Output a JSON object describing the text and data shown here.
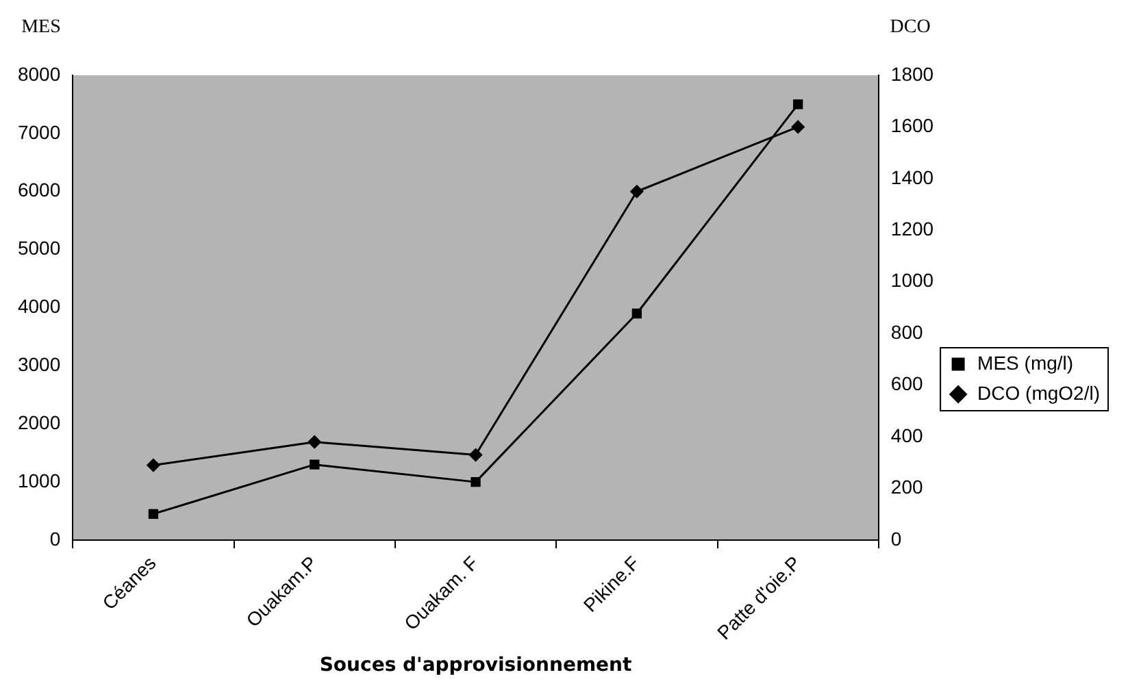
{
  "chart_data": {
    "type": "line",
    "categories": [
      "Céanes",
      "Ouakam.P",
      "Ouakam. F",
      "Pikine.F",
      "Patte d'oie.P"
    ],
    "xlabel": "Souces d'approvisionnement",
    "ylabel": "MES",
    "y2label": "DCO",
    "series": [
      {
        "name": "MES (mg/l)",
        "color": "#000000",
        "marker": "square",
        "values": [
          450,
          1300,
          1000,
          3900,
          7500
        ]
      },
      {
        "name": "DCO (mgO2/l)",
        "color": "#000000",
        "marker": "diamond",
        "axis": "y2",
        "values": [
          290,
          380,
          330,
          1350,
          1600
        ]
      }
    ],
    "ylim": [
      0,
      8000
    ],
    "yticks": [
      0,
      1000,
      2000,
      3000,
      4000,
      5000,
      6000,
      7000,
      8000
    ],
    "y2lim": [
      0,
      1800
    ],
    "y2ticks": [
      0,
      200,
      400,
      600,
      800,
      1000,
      1200,
      1400,
      1600,
      1800
    ],
    "grid": false,
    "legend": "right",
    "line_style": "solid"
  }
}
